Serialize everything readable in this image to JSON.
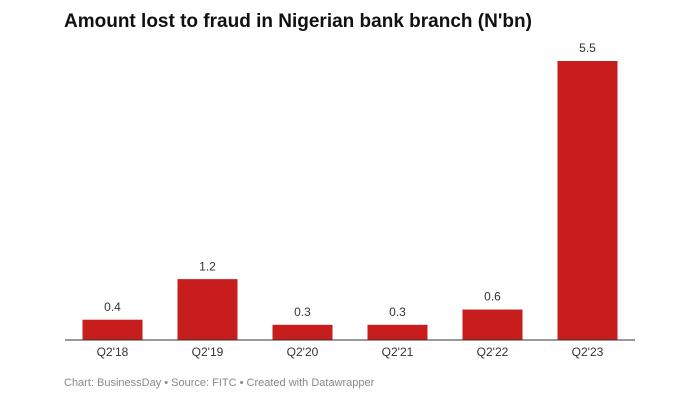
{
  "chart_data": {
    "type": "bar",
    "title": "Amount lost to fraud in Nigerian bank branch (N'bn)",
    "categories": [
      "Q2'18",
      "Q2'19",
      "Q2'20",
      "Q2'21",
      "Q2'22",
      "Q2'23"
    ],
    "values": [
      0.4,
      1.2,
      0.3,
      0.3,
      0.6,
      5.5
    ],
    "color": "#c71e1d",
    "ylim": [
      0,
      5.5
    ],
    "footer": "Chart: BusinessDay • Source: FITC • Created with Datawrapper"
  }
}
